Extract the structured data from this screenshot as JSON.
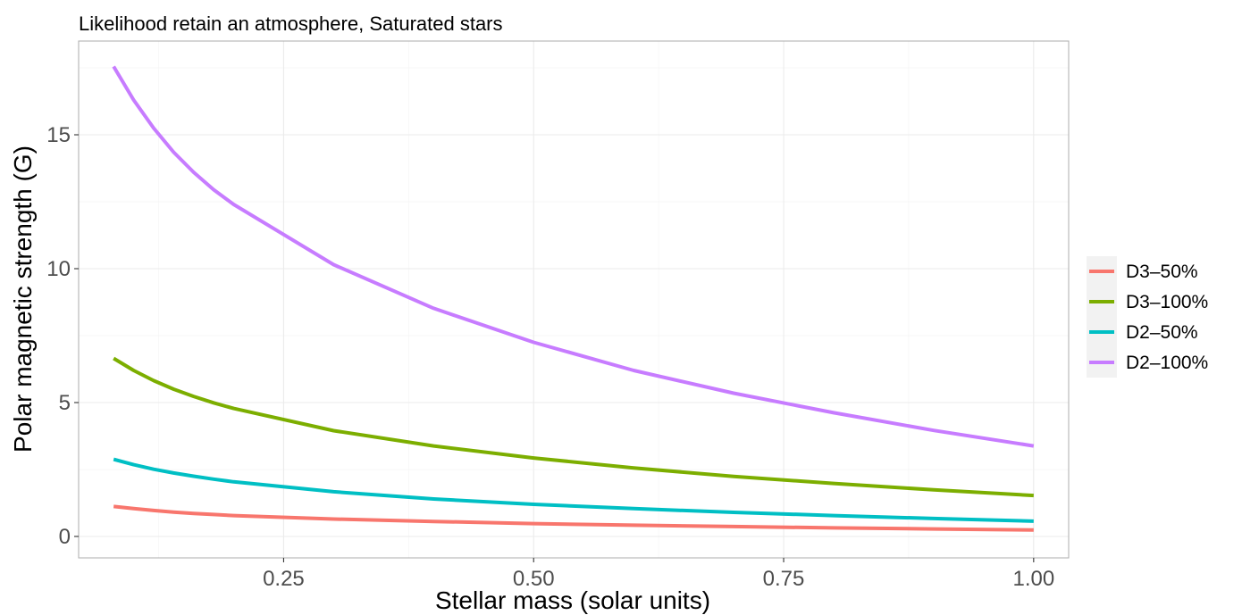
{
  "chart_data": {
    "type": "line",
    "title": "Likelihood retain an atmosphere, Saturated stars",
    "xlabel": "Stellar mass (solar units)",
    "ylabel": "Polar magnetic strength (G)",
    "xlim": [
      0.045,
      1.035
    ],
    "ylim": [
      -0.8,
      18.5
    ],
    "x_ticks": [
      0.25,
      0.5,
      0.75,
      1.0
    ],
    "x_tick_labels": [
      "0.25",
      "0.50",
      "0.75",
      "1.00"
    ],
    "y_ticks": [
      0,
      5,
      10,
      15
    ],
    "y_tick_labels": [
      "0",
      "5",
      "10",
      "15"
    ],
    "grid": true,
    "legend_position": "right",
    "x": [
      0.08,
      0.1,
      0.12,
      0.14,
      0.16,
      0.18,
      0.2,
      0.3,
      0.4,
      0.5,
      0.6,
      0.7,
      0.8,
      0.9,
      1.0
    ],
    "series": [
      {
        "name": "D3–50%",
        "color": "#F8766D",
        "values": [
          1.12,
          1.04,
          0.97,
          0.91,
          0.86,
          0.82,
          0.78,
          0.65,
          0.56,
          0.48,
          0.42,
          0.37,
          0.32,
          0.28,
          0.24
        ]
      },
      {
        "name": "D3–100%",
        "color": "#7CAE00",
        "values": [
          6.65,
          6.2,
          5.82,
          5.5,
          5.23,
          4.99,
          4.78,
          3.95,
          3.38,
          2.93,
          2.56,
          2.24,
          1.98,
          1.74,
          1.53
        ]
      },
      {
        "name": "D2–50%",
        "color": "#00BFC4",
        "values": [
          2.88,
          2.68,
          2.51,
          2.37,
          2.25,
          2.14,
          2.04,
          1.67,
          1.4,
          1.2,
          1.04,
          0.9,
          0.78,
          0.67,
          0.57
        ]
      },
      {
        "name": "D2–100%",
        "color": "#C77CFF",
        "values": [
          17.55,
          16.3,
          15.25,
          14.35,
          13.6,
          12.95,
          12.4,
          10.15,
          8.52,
          7.25,
          6.2,
          5.35,
          4.62,
          3.96,
          3.38
        ]
      }
    ]
  }
}
